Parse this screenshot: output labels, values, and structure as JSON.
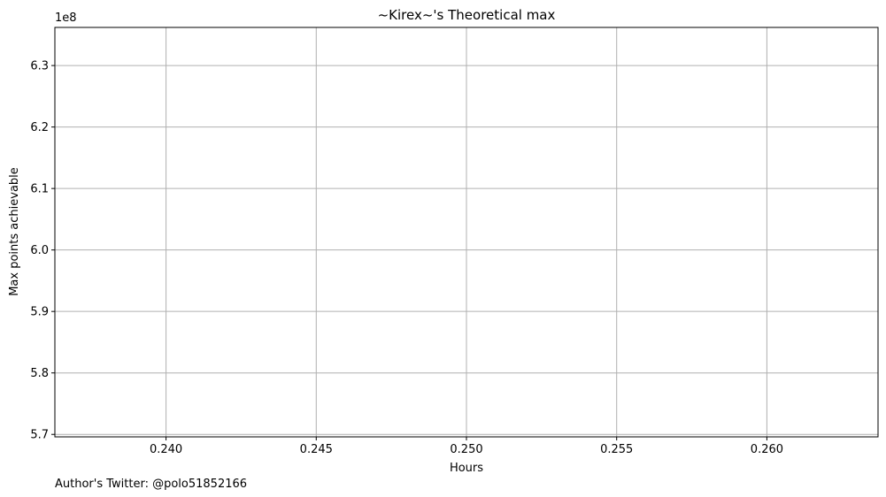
{
  "chart_data": {
    "type": "line",
    "title": "~Kirex~'s Theoretical max",
    "xlabel": "Hours",
    "ylabel": "Max points achievable",
    "y_offset_label": "1e8",
    "xlim": [
      0.2363,
      0.2637
    ],
    "ylim": [
      5.696,
      6.362
    ],
    "x_ticks": [
      0.24,
      0.245,
      0.25,
      0.255,
      0.26
    ],
    "x_tick_labels": [
      "0.240",
      "0.245",
      "0.250",
      "0.255",
      "0.260"
    ],
    "y_ticks": [
      5.7,
      5.8,
      5.9,
      6.0,
      6.1,
      6.2,
      6.3
    ],
    "y_tick_labels": [
      "5.7",
      "5.8",
      "5.9",
      "6.0",
      "6.1",
      "6.2",
      "6.3"
    ],
    "grid": true,
    "series": [],
    "annotation": "Author's Twitter: @polo51852166"
  }
}
